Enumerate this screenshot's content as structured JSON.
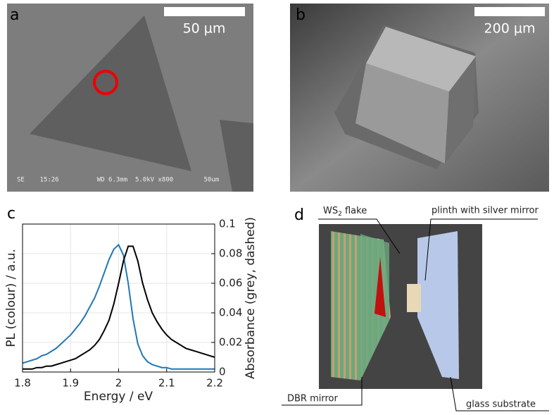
{
  "panels": {
    "a": {
      "label": "a",
      "scale": "50 µm",
      "info": "SE    15:26          WD 6.3mm  5.0kV x800        50um"
    },
    "b": {
      "label": "b",
      "scale": "200 µm"
    },
    "d": {
      "label": "d",
      "flake": "WS",
      "flake_sub": "2",
      "flake_rest": " flake",
      "plinth": "plinth with silver mirror",
      "dbr": "DBR mirror",
      "glass": "glass substrate"
    }
  },
  "chart_data": {
    "type": "line",
    "panel_label": "c",
    "x_label": "Energy / eV",
    "y_label": "PL (colour) / a.u.",
    "y2_label": "Absorbance (grey, dashed)",
    "x": [
      1.8,
      1.81,
      1.82,
      1.83,
      1.84,
      1.85,
      1.86,
      1.87,
      1.88,
      1.89,
      1.9,
      1.91,
      1.92,
      1.93,
      1.94,
      1.95,
      1.96,
      1.97,
      1.98,
      1.99,
      2.0,
      2.01,
      2.02,
      2.03,
      2.04,
      2.05,
      2.06,
      2.07,
      2.08,
      2.09,
      2.1,
      2.11,
      2.12,
      2.13,
      2.14,
      2.15,
      2.16,
      2.17,
      2.18,
      2.19,
      2.2
    ],
    "series": [
      {
        "color": "#1f77b4",
        "axis": "y2",
        "values": [
          0.006,
          0.007,
          0.008,
          0.009,
          0.011,
          0.012,
          0.014,
          0.016,
          0.019,
          0.022,
          0.025,
          0.029,
          0.033,
          0.038,
          0.044,
          0.05,
          0.058,
          0.067,
          0.076,
          0.083,
          0.086,
          0.079,
          0.06,
          0.036,
          0.019,
          0.011,
          0.007,
          0.005,
          0.004,
          0.003,
          0.003,
          0.002,
          0.002,
          0.002,
          0.002,
          0.002,
          0.002,
          0.002,
          0.002,
          0.002,
          0.002
        ]
      },
      {
        "color": "#000000",
        "axis": "y2",
        "values": [
          0.002,
          0.002,
          0.002,
          0.003,
          0.003,
          0.004,
          0.004,
          0.005,
          0.006,
          0.007,
          0.008,
          0.009,
          0.011,
          0.013,
          0.015,
          0.018,
          0.022,
          0.028,
          0.035,
          0.046,
          0.06,
          0.075,
          0.085,
          0.085,
          0.075,
          0.06,
          0.049,
          0.04,
          0.034,
          0.029,
          0.025,
          0.022,
          0.02,
          0.018,
          0.016,
          0.015,
          0.014,
          0.013,
          0.012,
          0.011,
          0.01
        ]
      }
    ],
    "xlim": [
      1.8,
      2.2
    ],
    "xticks": [
      1.8,
      1.9,
      2,
      2.1,
      2.2
    ],
    "y2lim": [
      0,
      0.1
    ],
    "y2ticks": [
      0,
      0.02,
      0.04,
      0.06,
      0.08,
      0.1
    ],
    "grid": true
  }
}
